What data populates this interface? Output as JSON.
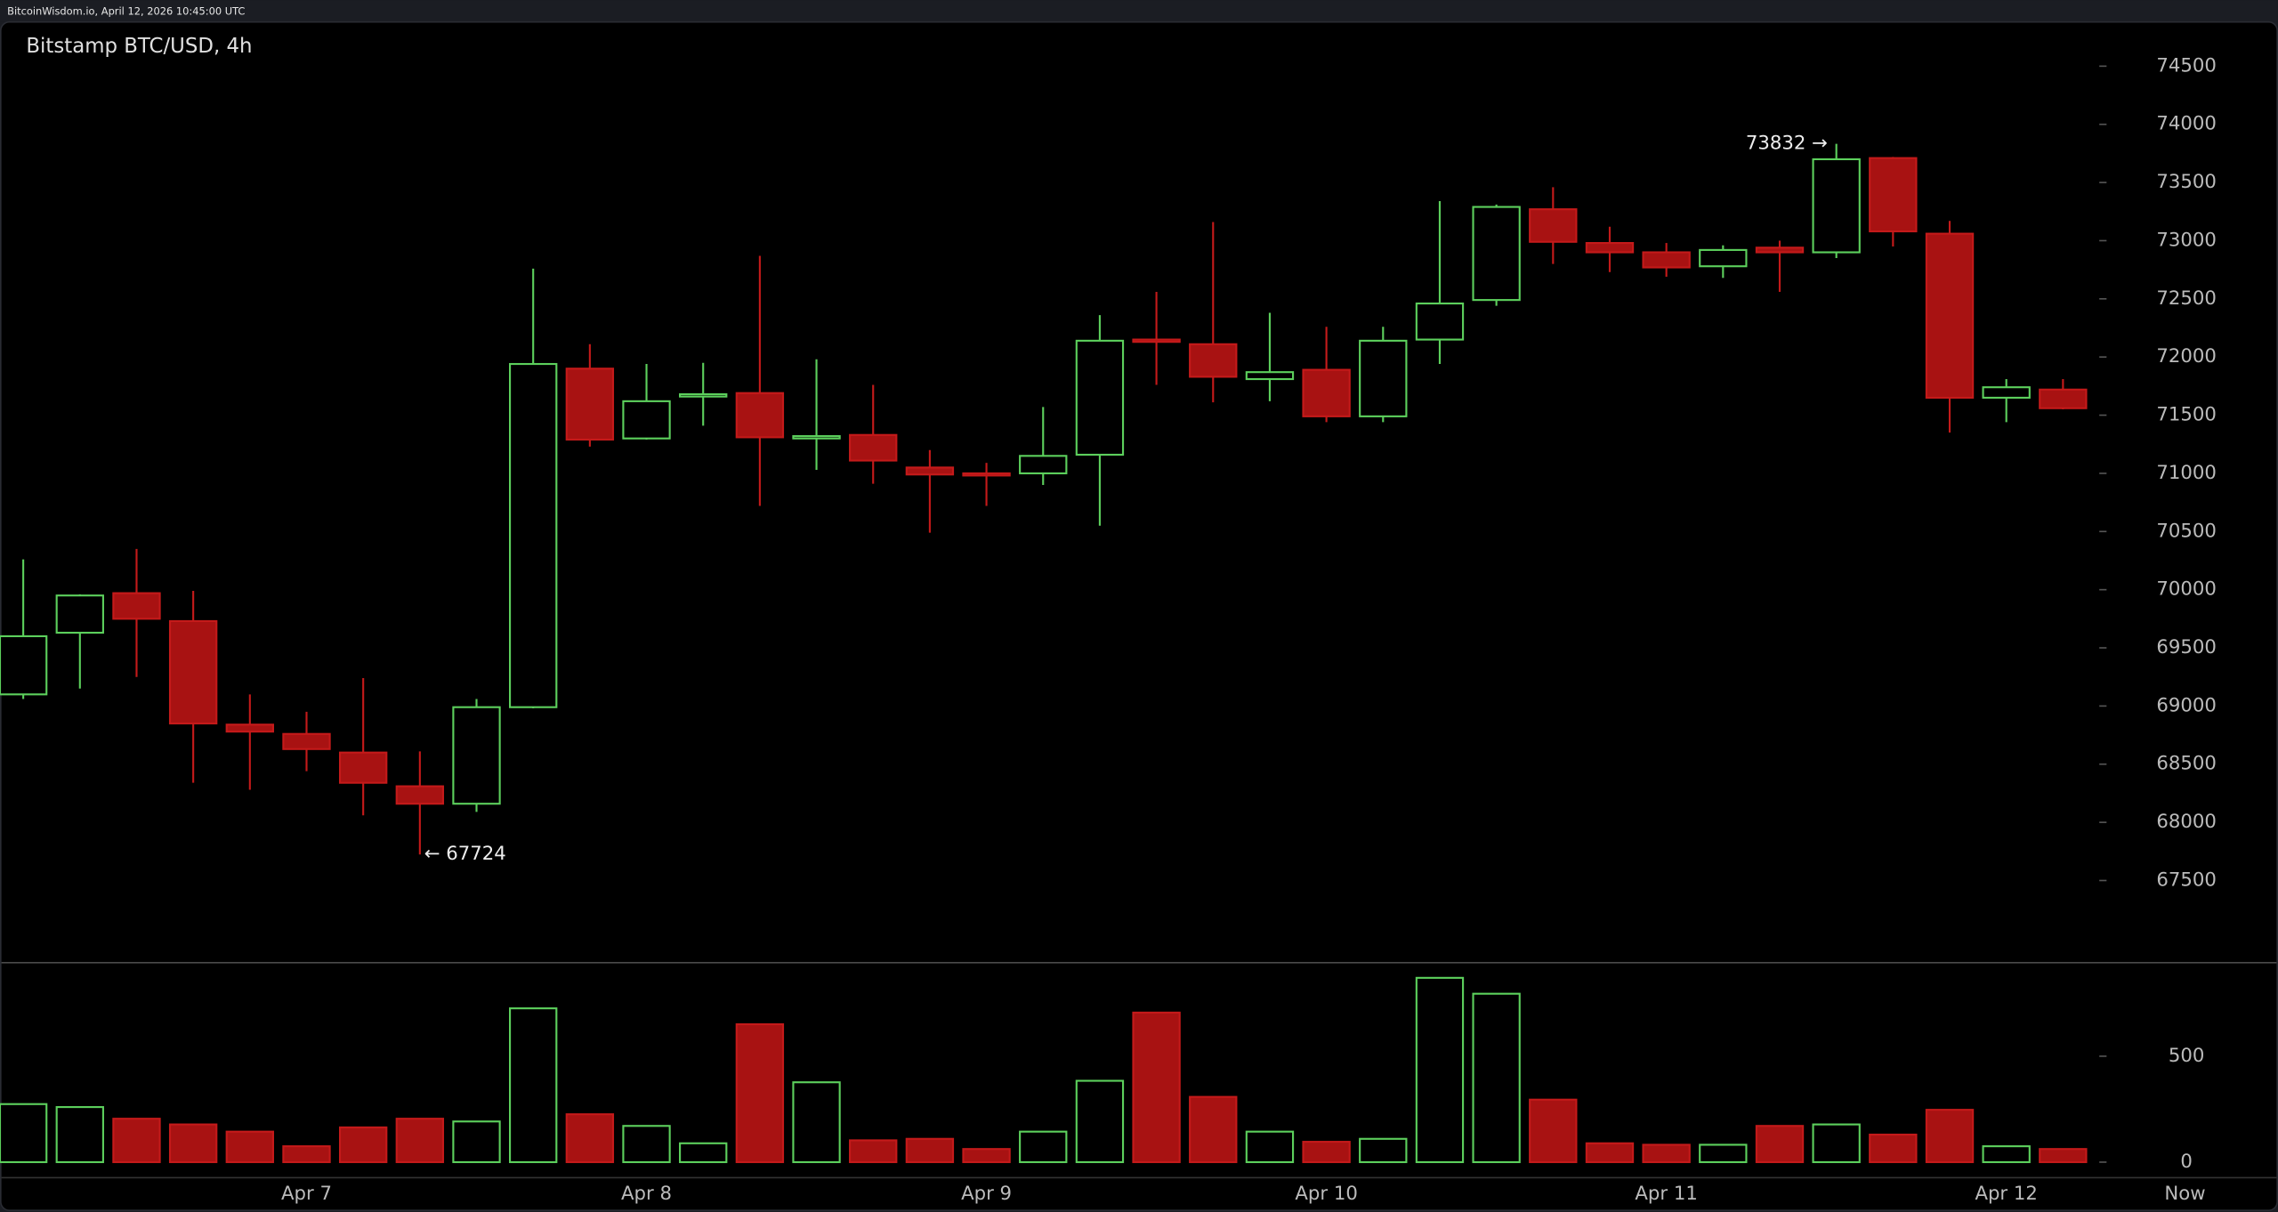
{
  "header": "BitcoinWisdom.io, April 12, 2026 10:45:00 UTC",
  "chart_data": {
    "type": "candlestick",
    "title": "Bitstamp BTC/USD, 4h",
    "categories": [
      null,
      null,
      null,
      null,
      null,
      "Apr 7",
      null,
      null,
      null,
      null,
      null,
      "Apr 8",
      null,
      null,
      null,
      null,
      null,
      "Apr 9",
      null,
      null,
      null,
      null,
      null,
      "Apr 10",
      null,
      null,
      null,
      null,
      null,
      "Apr 11",
      null,
      null,
      null,
      null,
      null,
      "Apr 12",
      null
    ],
    "now_label": "Now",
    "open": [
      69100,
      69630,
      69970,
      69730,
      68840,
      68760,
      68600,
      68310,
      68160,
      68990,
      71900,
      71300,
      71660,
      71690,
      71300,
      71330,
      71050,
      71000,
      71000,
      71160,
      72150,
      72110,
      71810,
      71890,
      71490,
      72150,
      72490,
      73270,
      72980,
      72900,
      72780,
      72940,
      72900,
      73710,
      73060,
      71650,
      71720
    ],
    "high": [
      70260,
      69960,
      70350,
      69990,
      69100,
      68950,
      69240,
      68610,
      69060,
      72760,
      72110,
      71940,
      71950,
      72870,
      71980,
      71760,
      71200,
      71090,
      71570,
      72360,
      72560,
      73160,
      72380,
      72260,
      72260,
      73340,
      73310,
      73460,
      73120,
      72980,
      72960,
      73000,
      73832,
      73720,
      73170,
      71810,
      71810
    ],
    "low": [
      69060,
      69150,
      69250,
      68340,
      68280,
      68440,
      68060,
      67724,
      68090,
      68980,
      71230,
      71290,
      71410,
      70720,
      71030,
      70910,
      70490,
      70720,
      70900,
      70550,
      71760,
      71610,
      71620,
      71440,
      71440,
      71940,
      72440,
      72800,
      72730,
      72690,
      72680,
      72560,
      72850,
      72950,
      71350,
      71440,
      71550
    ],
    "close": [
      69600,
      69950,
      69750,
      68850,
      68780,
      68630,
      68340,
      68160,
      68990,
      71940,
      71290,
      71620,
      71680,
      71310,
      71320,
      71110,
      70990,
      70990,
      71150,
      72140,
      72130,
      71830,
      71870,
      71490,
      72140,
      72460,
      73290,
      72990,
      72900,
      72770,
      72920,
      72900,
      73700,
      73080,
      71650,
      71740,
      71560
    ],
    "volume": [
      274,
      260,
      205,
      178,
      144,
      75,
      164,
      205,
      192,
      726,
      226,
      171,
      89,
      651,
      377,
      103,
      110,
      62,
      144,
      384,
      706,
      308,
      144,
      96,
      110,
      870,
      795,
      295,
      89,
      82,
      82,
      171,
      178,
      130,
      247,
      75,
      62
    ],
    "up_color": "#5ccf5c",
    "down_color": "#a81212",
    "ylim": [
      66800,
      74880
    ],
    "yticks": [
      67500,
      68000,
      68500,
      69000,
      69500,
      70000,
      70500,
      71000,
      71500,
      72000,
      72500,
      73000,
      73500,
      74000,
      74500
    ],
    "volume_ylim": [
      -70,
      945
    ],
    "volume_ticks": [
      0,
      500
    ],
    "annotations": [
      {
        "value": 73832,
        "label": "73832 →"
      },
      {
        "value": 67724,
        "label": "← 67724"
      }
    ]
  }
}
